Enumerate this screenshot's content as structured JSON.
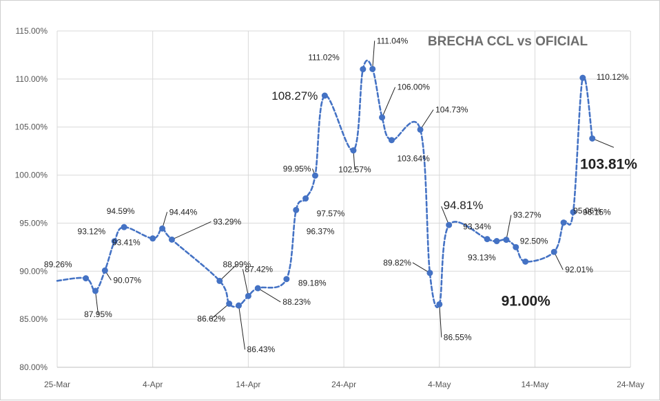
{
  "chart_data": {
    "type": "line",
    "title": "BRECHA CCL vs OFICIAL",
    "xlabel": "",
    "ylabel": "",
    "ylim": [
      80,
      115
    ],
    "y_ticks": [
      "80.00%",
      "85.00%",
      "90.00%",
      "95.00%",
      "100.00%",
      "105.00%",
      "110.00%",
      "115.00%"
    ],
    "x_ticks": [
      "25-Mar",
      "4-Apr",
      "14-Apr",
      "24-Apr",
      "4-May",
      "14-May",
      "24-May"
    ],
    "grid": true,
    "line_color": "#4472c4",
    "line_style": "dashed",
    "series": [
      {
        "values": [
          {
            "x": "2022-03-28",
            "y": 89.26,
            "label": "89.26%"
          },
          {
            "x": "2022-03-29",
            "y": 87.95,
            "label": "87.95%"
          },
          {
            "x": "2022-03-30",
            "y": 90.07,
            "label": "90.07%"
          },
          {
            "x": "2022-03-31",
            "y": 93.12,
            "label": "93.12%"
          },
          {
            "x": "2022-04-01",
            "y": 94.59,
            "label": "94.59%"
          },
          {
            "x": "2022-04-04",
            "y": 93.41,
            "label": "93.41%"
          },
          {
            "x": "2022-04-05",
            "y": 94.44,
            "label": "94.44%"
          },
          {
            "x": "2022-04-06",
            "y": 93.29,
            "label": "93.29%"
          },
          {
            "x": "2022-04-11",
            "y": 88.99,
            "label": "88.99%"
          },
          {
            "x": "2022-04-12",
            "y": 86.62,
            "label": "86.62%"
          },
          {
            "x": "2022-04-13",
            "y": 86.43,
            "label": "86.43%"
          },
          {
            "x": "2022-04-14",
            "y": 87.42,
            "label": "87.42%"
          },
          {
            "x": "2022-04-15",
            "y": 88.23,
            "label": "88.23%"
          },
          {
            "x": "2022-04-18",
            "y": 89.18,
            "label": "89.18%"
          },
          {
            "x": "2022-04-19",
            "y": 96.37,
            "label": "96.37%"
          },
          {
            "x": "2022-04-20",
            "y": 97.57,
            "label": "97.57%"
          },
          {
            "x": "2022-04-21",
            "y": 99.95,
            "label": "99.95%"
          },
          {
            "x": "2022-04-22",
            "y": 108.27,
            "label": "108.27%"
          },
          {
            "x": "2022-04-25",
            "y": 102.57,
            "label": "102.57%"
          },
          {
            "x": "2022-04-26",
            "y": 111.02,
            "label": "111.02%"
          },
          {
            "x": "2022-04-27",
            "y": 111.04,
            "label": "111.04%"
          },
          {
            "x": "2022-04-28",
            "y": 106.0,
            "label": "106.00%"
          },
          {
            "x": "2022-04-29",
            "y": 103.64,
            "label": "103.64%"
          },
          {
            "x": "2022-05-02",
            "y": 104.73,
            "label": "104.73%"
          },
          {
            "x": "2022-05-03",
            "y": 89.82,
            "label": "89.82%"
          },
          {
            "x": "2022-05-04",
            "y": 86.55,
            "label": "86.55%"
          },
          {
            "x": "2022-05-05",
            "y": 94.81,
            "label": "94.81%"
          },
          {
            "x": "2022-05-09",
            "y": 93.34,
            "label": "93.34%"
          },
          {
            "x": "2022-05-10",
            "y": 93.13,
            "label": "93.13%"
          },
          {
            "x": "2022-05-11",
            "y": 93.27,
            "label": "93.27%"
          },
          {
            "x": "2022-05-12",
            "y": 92.5,
            "label": "92.50%"
          },
          {
            "x": "2022-05-13",
            "y": 91.0,
            "label": "91.00%"
          },
          {
            "x": "2022-05-16",
            "y": 92.01,
            "label": "92.01%"
          },
          {
            "x": "2022-05-17",
            "y": 95.06,
            "label": "95.06%"
          },
          {
            "x": "2022-05-18",
            "y": 96.15,
            "label": "96.15%"
          },
          {
            "x": "2022-05-19",
            "y": 110.12,
            "label": "110.12%"
          },
          {
            "x": "2022-05-20",
            "y": 103.81,
            "label": "103.81%"
          }
        ]
      }
    ]
  }
}
